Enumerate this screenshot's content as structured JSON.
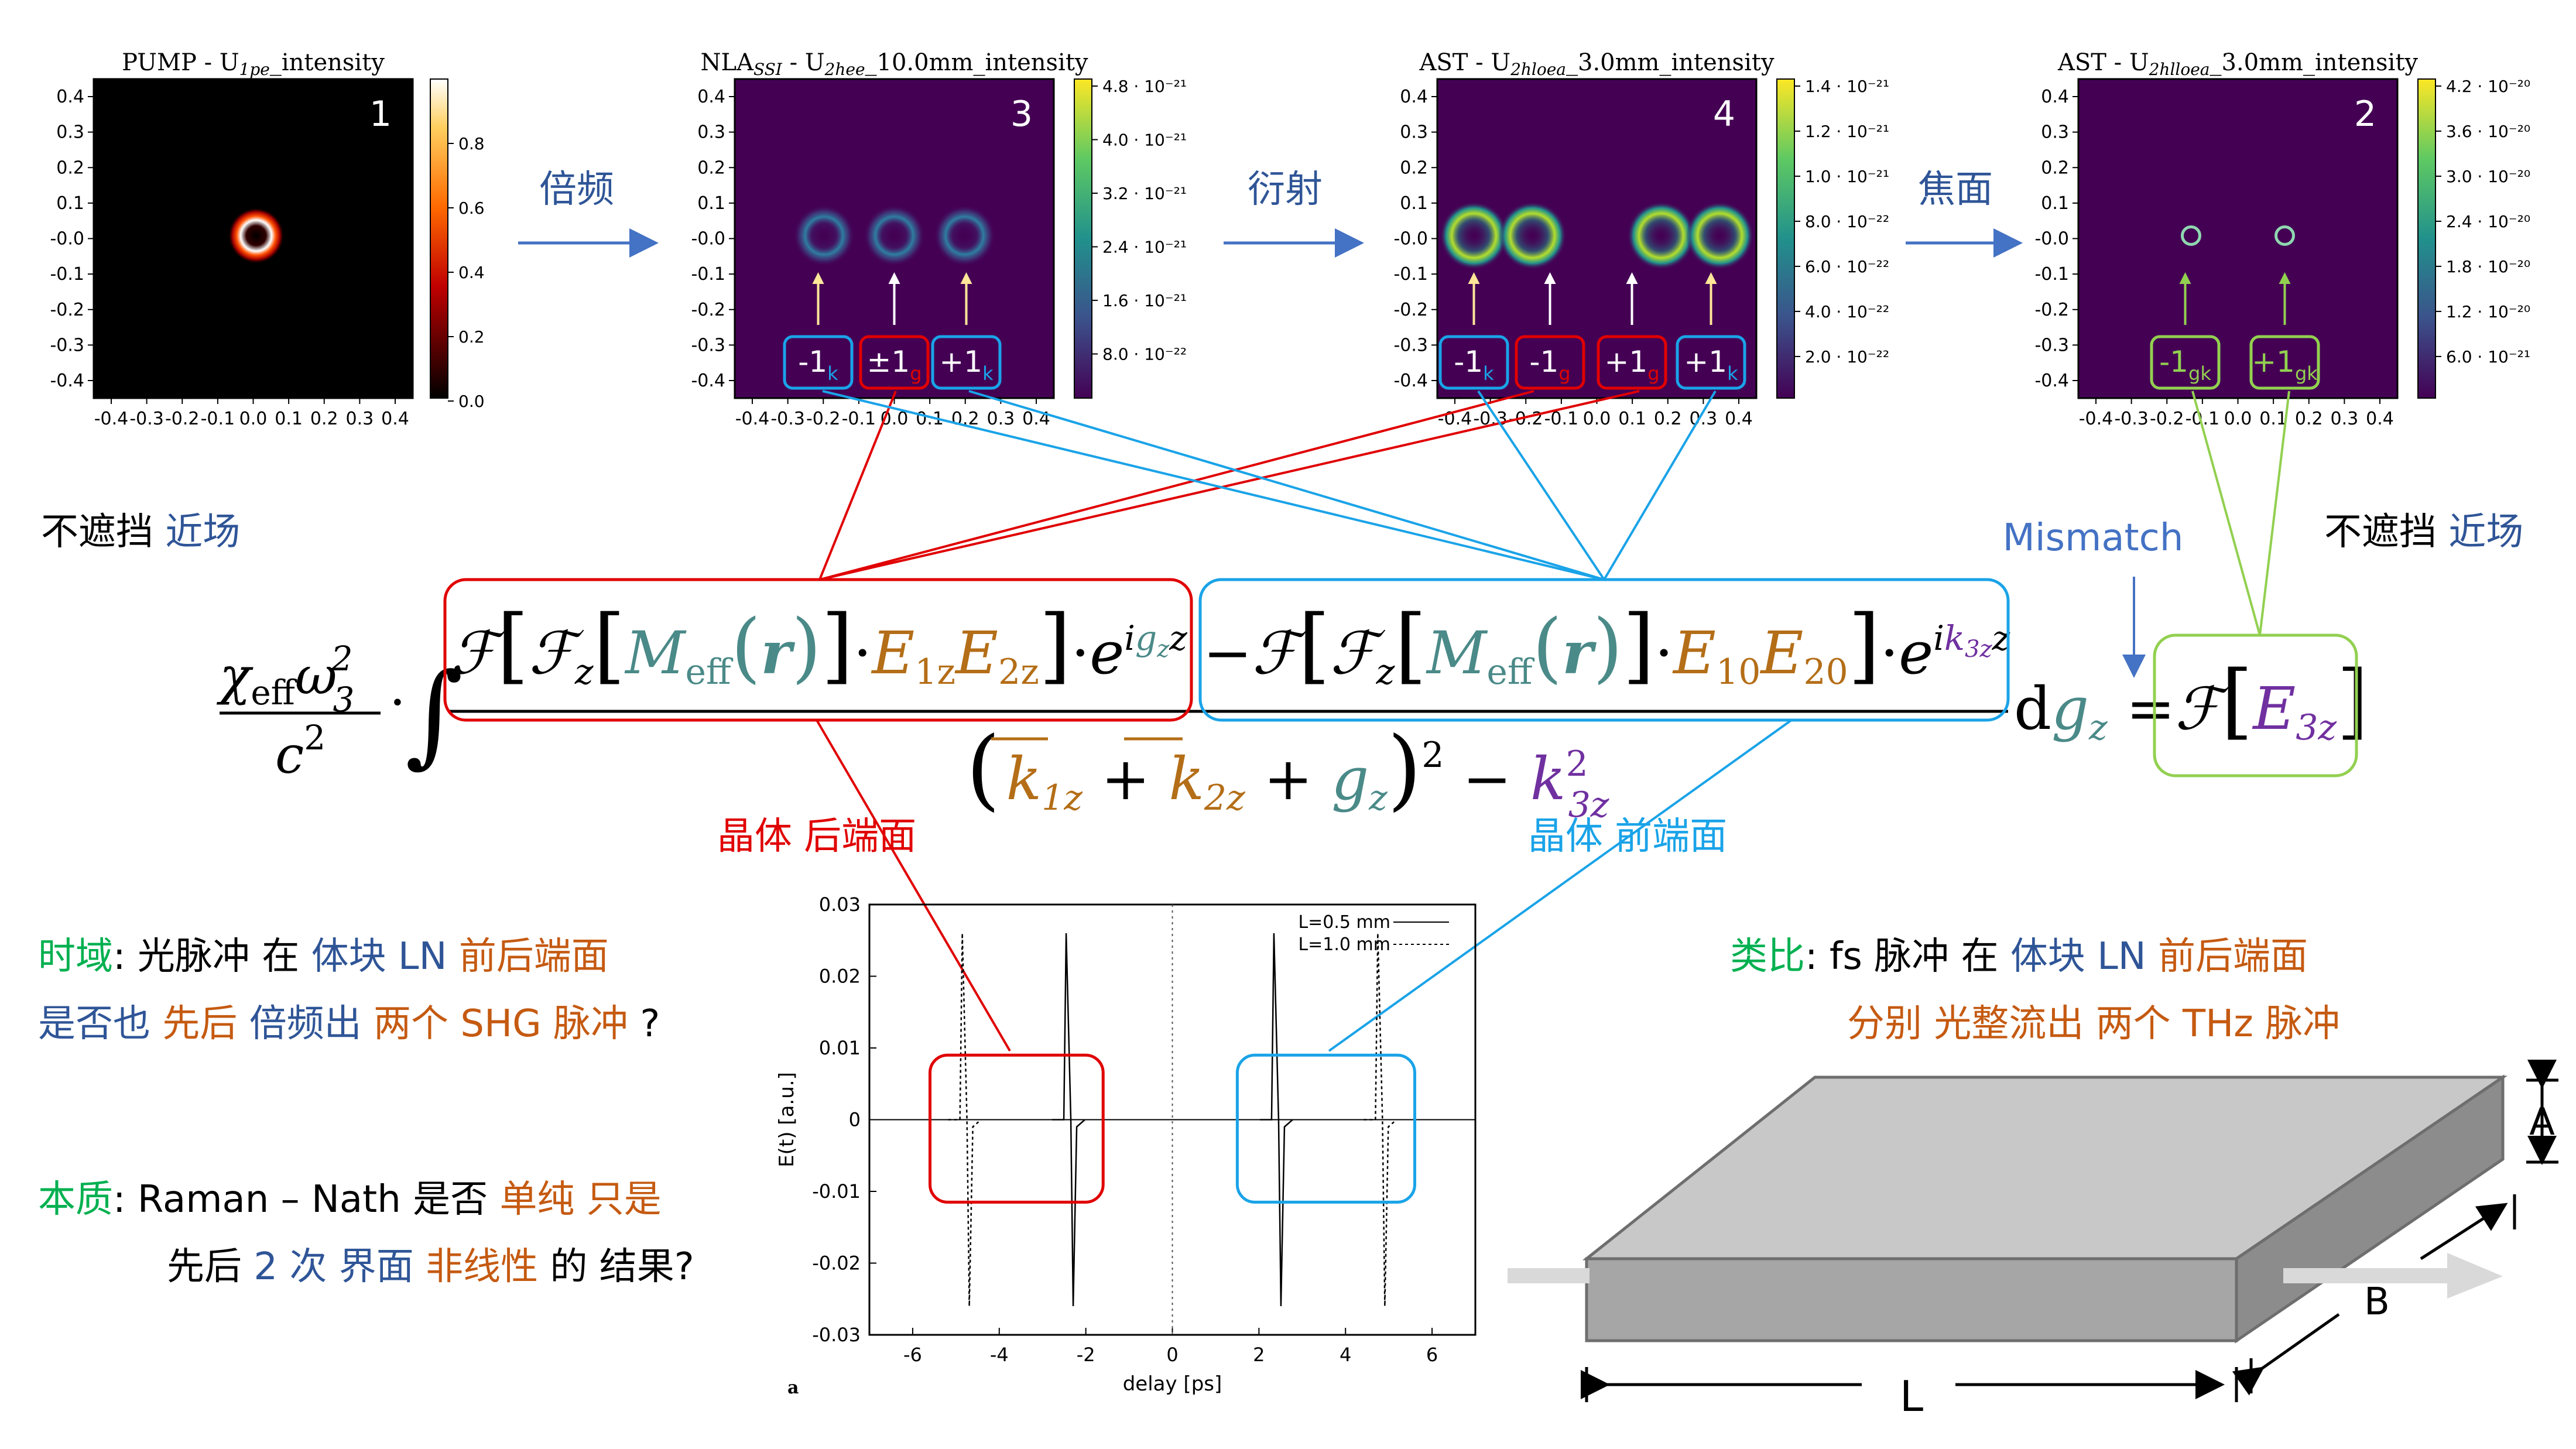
{
  "panels": [
    {
      "id": "pump",
      "title": "PUMP - U",
      "title_sub": "1pe",
      "title_tail": "_intensity",
      "number": "1",
      "cbar_ticks": [
        "0.8",
        "0.6",
        "0.4",
        "0.2",
        "0.0"
      ],
      "colormap": "hot"
    },
    {
      "id": "nla",
      "title": "NLA",
      "title_sub": "SSI",
      "title_mid": " - U",
      "title_sub2": "2hee",
      "title_tail": "_10.0mm_intensity",
      "number": "3",
      "cbar_ticks": [
        "4.8 · 10⁻²¹",
        "4.0 · 10⁻²¹",
        "3.2 · 10⁻²¹",
        "2.4 · 10⁻²¹",
        "1.6 · 10⁻²¹",
        "8.0 · 10⁻²²"
      ],
      "colormap": "viridis",
      "labels": [
        {
          "main": "-1",
          "sub": "k",
          "color": "#1aa3e8"
        },
        {
          "main": "±1",
          "sub": "g",
          "color": "#e00000"
        },
        {
          "main": "+1",
          "sub": "k",
          "color": "#1aa3e8"
        }
      ]
    },
    {
      "id": "ast1",
      "title": "AST - U",
      "title_sub": "2hloea",
      "title_tail": "_3.0mm_intensity",
      "number": "4",
      "cbar_ticks": [
        "1.4 · 10⁻²¹",
        "1.2 · 10⁻²¹",
        "1.0 · 10⁻²¹",
        "8.0 · 10⁻²²",
        "6.0 · 10⁻²²",
        "4.0 · 10⁻²²",
        "2.0 · 10⁻²²"
      ],
      "colormap": "viridis",
      "labels": [
        {
          "main": "-1",
          "sub": "k",
          "color": "#1aa3e8"
        },
        {
          "main": "-1",
          "sub": "g",
          "color": "#e00000"
        },
        {
          "main": "+1",
          "sub": "g",
          "color": "#e00000"
        },
        {
          "main": "+1",
          "sub": "k",
          "color": "#1aa3e8"
        }
      ]
    },
    {
      "id": "ast2",
      "title": "AST - U",
      "title_sub": "2hlloea",
      "title_tail": "_3.0mm_intensity",
      "number": "2",
      "cbar_ticks": [
        "4.2 · 10⁻²⁰",
        "3.6 · 10⁻²⁰",
        "3.0 · 10⁻²⁰",
        "2.4 · 10⁻²⁰",
        "1.8 · 10⁻²⁰",
        "1.2 · 10⁻²⁰",
        "6.0 · 10⁻²¹"
      ],
      "colormap": "viridis",
      "labels": [
        {
          "main": "-1",
          "sub": "gk",
          "color": "#92d050"
        },
        {
          "main": "+1",
          "sub": "gk",
          "color": "#92d050"
        }
      ]
    }
  ],
  "axis_ticks_y": [
    "0.4",
    "0.3",
    "0.2",
    "0.1",
    "-0.0",
    "-0.1",
    "-0.2",
    "-0.3",
    "-0.4"
  ],
  "axis_ticks_x": [
    "-0.4",
    "-0.3",
    "-0.2",
    "-0.1",
    "0.0",
    "0.1",
    "0.2",
    "0.3",
    "0.4"
  ],
  "arrows": [
    "倍频",
    "衍射",
    "焦面"
  ],
  "near_field_left": {
    "a": "不遮挡",
    "b": "近场"
  },
  "near_field_right": {
    "a": "不遮挡",
    "b": "近场"
  },
  "mismatch": "Mismatch",
  "crystal_back": "晶体 后端面",
  "crystal_front": "晶体 前端面",
  "questions": {
    "time_label": "时域",
    "time_line1_a": "光脉冲 在",
    "time_line1_b": "体块 LN",
    "time_line1_c": "前后端面",
    "time_line2_a": "是否也",
    "time_line2_b": "先后",
    "time_line2_c": "倍频出",
    "time_line2_d": "两个 SHG 脉冲",
    "time_line2_e": "?",
    "essence_label": "本质",
    "ess_line1_a": "Raman – Nath 是否",
    "ess_line1_b": "单纯",
    "ess_line1_c": "只是",
    "ess_line2_a": "先后",
    "ess_line2_b": "2 次",
    "ess_line2_c": "界面",
    "ess_line2_d": "非线性",
    "ess_line2_e": "的 结果?",
    "analog_label": "类比",
    "ana_line1_a": "fs 脉冲 在",
    "ana_line1_b": "体块 LN",
    "ana_line1_c": "前后端面",
    "ana_line2_a": "分别",
    "ana_line2_b": "光整流出",
    "ana_line2_c": "两个 THz 脉冲"
  },
  "crystal_dims": {
    "A": "A",
    "B": "B",
    "L": "L"
  },
  "chart_data": {
    "type": "line",
    "xlabel": "delay [ps]",
    "ylabel": "E(t) [a.u.]",
    "xlim": [
      -7,
      7
    ],
    "ylim": [
      -0.03,
      0.03
    ],
    "xticks": [
      -6,
      -4,
      -2,
      0,
      2,
      4,
      6
    ],
    "yticks": [
      0.03,
      0.02,
      0.01,
      0,
      -0.01,
      -0.02,
      -0.03
    ],
    "panel_label": "a",
    "series": [
      {
        "name": "L=0.5 mm",
        "style": "solid",
        "pulses": [
          {
            "t": -2.4,
            "peak": 0.026
          },
          {
            "t": 2.4,
            "peak": 0.026
          }
        ]
      },
      {
        "name": "L=1.0 mm",
        "style": "dashed",
        "pulses": [
          {
            "t": -4.8,
            "peak": 0.026
          },
          {
            "t": 4.8,
            "peak": 0.026
          }
        ]
      }
    ]
  }
}
